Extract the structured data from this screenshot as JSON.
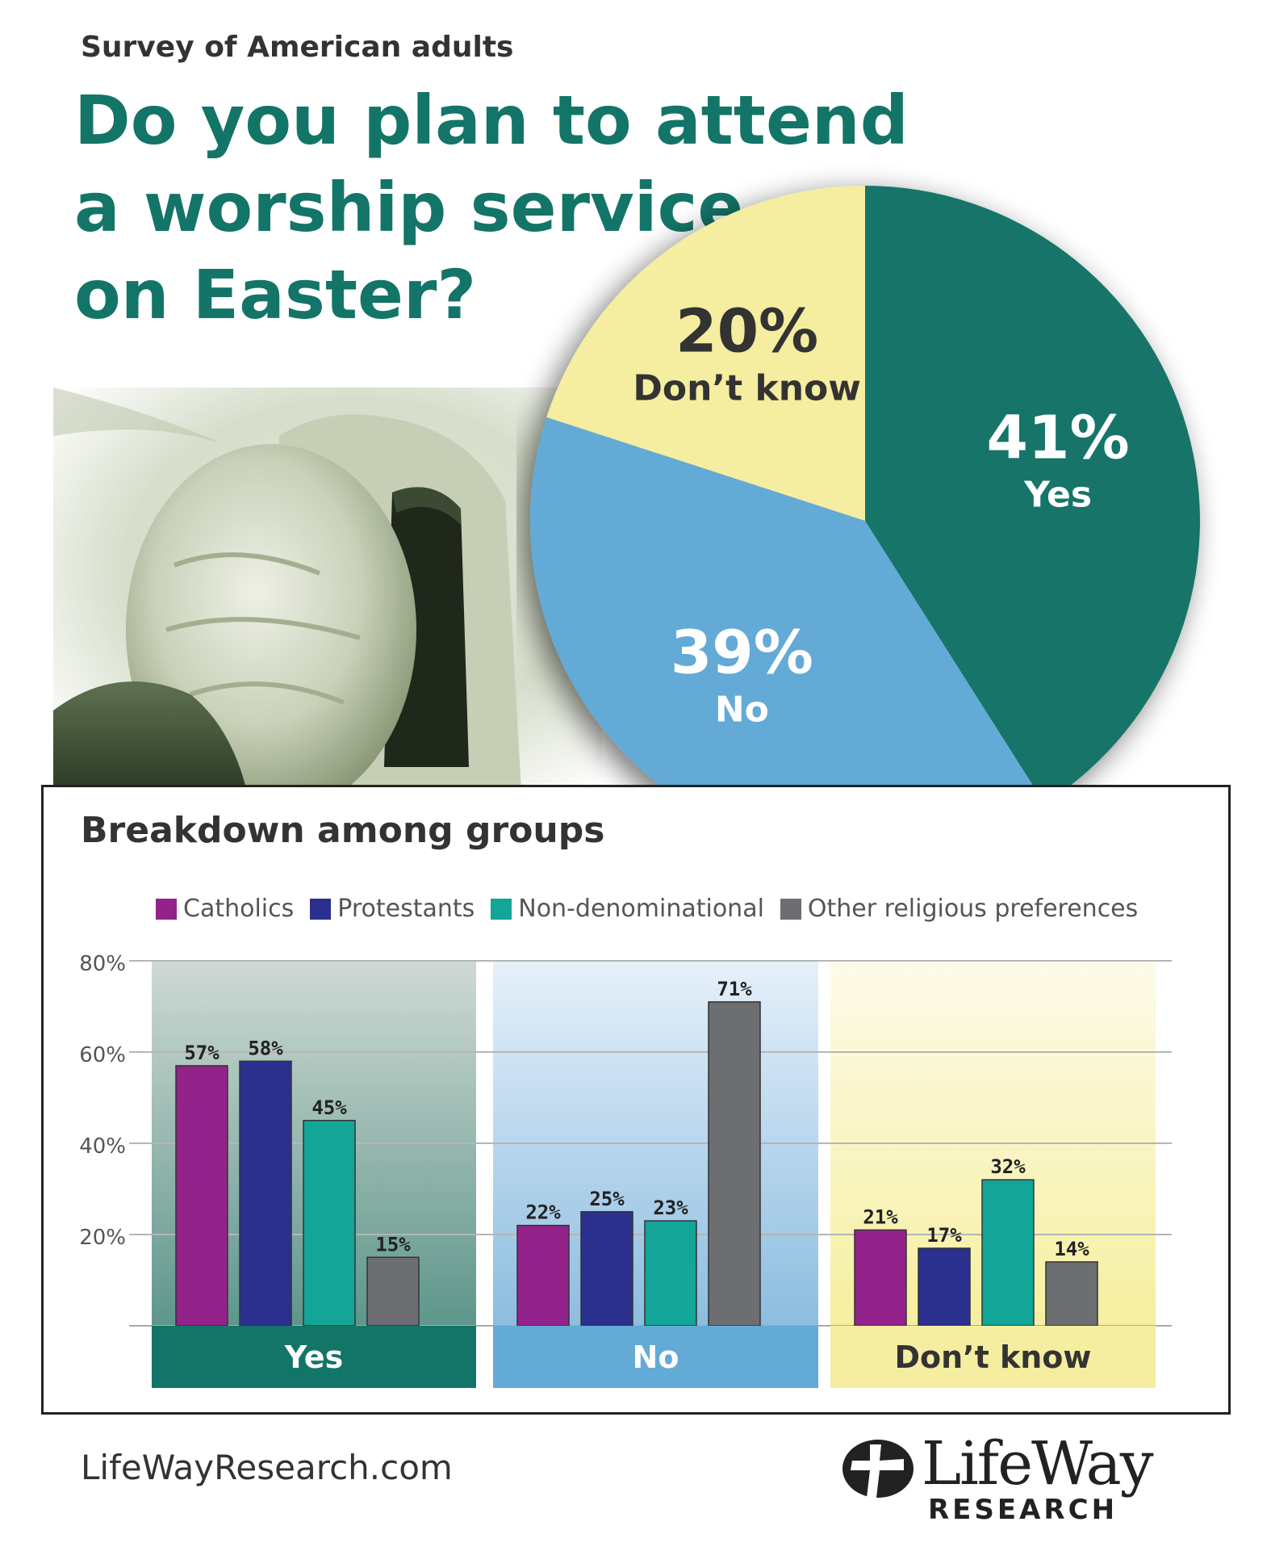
{
  "header": {
    "subtitle": "Survey of American adults",
    "title_lines": [
      "Do you plan to attend",
      "a worship service",
      "on Easter?"
    ]
  },
  "chart_data": [
    {
      "type": "pie",
      "slices": [
        {
          "label": "Yes",
          "value": 41,
          "value_label": "41%",
          "color": "#137567",
          "text_color": "#ffffff"
        },
        {
          "label": "No",
          "value": 39,
          "value_label": "39%",
          "color": "#64aad6",
          "text_color": "#ffffff"
        },
        {
          "label": "Don’t know",
          "value": 20,
          "value_label": "20%",
          "color": "#f5ed9f",
          "text_color": "#333333"
        }
      ]
    },
    {
      "type": "bar",
      "title": "Breakdown among groups",
      "categories": [
        "Yes",
        "No",
        "Don’t know"
      ],
      "category_colors": [
        "#137567",
        "#64aad6",
        "#f5ed9f"
      ],
      "category_text_colors": [
        "#ffffff",
        "#ffffff",
        "#333333"
      ],
      "ylim": [
        0,
        80
      ],
      "yticks": [
        20,
        40,
        60,
        80
      ],
      "ytick_labels": [
        "20%",
        "40%",
        "60%",
        "80%"
      ],
      "grid": true,
      "legend_position": "top",
      "series": [
        {
          "name": "Catholics",
          "color": "#93238b",
          "values": [
            57,
            22,
            21
          ],
          "labels": [
            "57%",
            "22%",
            "21%"
          ]
        },
        {
          "name": "Protestants",
          "color": "#2b2f8e",
          "values": [
            58,
            25,
            17
          ],
          "labels": [
            "58%",
            "25%",
            "17%"
          ]
        },
        {
          "name": "Non-denominational",
          "color": "#13a597",
          "values": [
            45,
            23,
            32
          ],
          "labels": [
            "45%",
            "23%",
            "32%"
          ]
        },
        {
          "name": "Other religious preferences",
          "color": "#6d6e72",
          "values": [
            15,
            71,
            14
          ],
          "labels": [
            "15%",
            "71%",
            "14%"
          ]
        }
      ]
    }
  ],
  "footer": {
    "website": "LifeWayResearch.com",
    "logo_name": "LifeWay",
    "logo_sub": "RESEARCH",
    "logo_icon": "lifeway-cross-icon"
  }
}
